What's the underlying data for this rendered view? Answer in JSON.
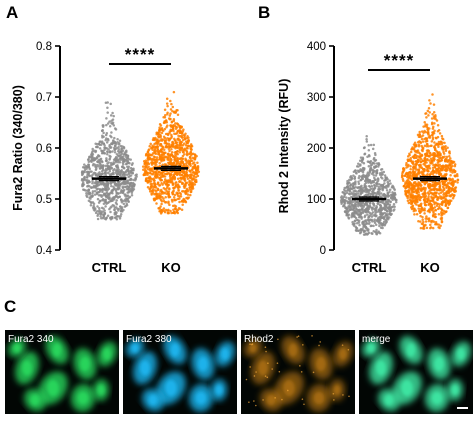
{
  "panels": {
    "a": "A",
    "b": "B",
    "c": "C"
  },
  "chart_data": [
    {
      "panel": "A",
      "type": "scatter",
      "ylabel": "Fura2 Ratio (340/380)",
      "categories": [
        "CTRL",
        "KO"
      ],
      "ylim": [
        0.4,
        0.8
      ],
      "yticks": [
        "0.4",
        "0.5",
        "0.6",
        "0.7",
        "0.8"
      ],
      "series": [
        {
          "category": "CTRL",
          "color": "#8c8c8c",
          "mean": 0.54,
          "min": 0.46,
          "max": 0.69,
          "n": 900
        },
        {
          "category": "KO",
          "color": "#ff8000",
          "mean": 0.56,
          "min": 0.47,
          "max": 0.72,
          "n": 1100
        }
      ],
      "significance": "****"
    },
    {
      "panel": "B",
      "type": "scatter",
      "ylabel": "Rhod 2 Intensity (RFU)",
      "categories": [
        "CTRL",
        "KO"
      ],
      "ylim": [
        0,
        400
      ],
      "yticks": [
        "0",
        "100",
        "200",
        "300",
        "400"
      ],
      "series": [
        {
          "category": "CTRL",
          "color": "#8c8c8c",
          "mean": 100,
          "min": 30,
          "max": 230,
          "n": 900
        },
        {
          "category": "KO",
          "color": "#ff8000",
          "mean": 140,
          "min": 40,
          "max": 305,
          "n": 1100
        }
      ],
      "significance": "****"
    }
  ],
  "micrographs": [
    {
      "label": "Fura2 340",
      "tint": "#27d85c"
    },
    {
      "label": "Fura2 380",
      "tint": "#1cb6f0"
    },
    {
      "label": "Rhod2",
      "tint": "#d88a14"
    },
    {
      "label": "merge",
      "tint": "#3ee8a4"
    }
  ]
}
